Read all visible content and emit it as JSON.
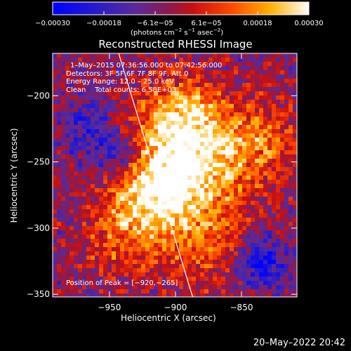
{
  "chart_data": {
    "type": "heatmap",
    "title": "Reconstructed RHESSI Image",
    "xlabel": "Heliocentric X (arcsec)",
    "ylabel": "Heliocentric Y (arcsec)",
    "xlim": [
      -993,
      -808
    ],
    "ylim": [
      -352,
      -168
    ],
    "xticks": [
      -950,
      -900,
      -850
    ],
    "yticks": [
      -200,
      -250,
      -300,
      -350
    ],
    "xtick_labels": [
      "−950",
      "−900",
      "−850"
    ],
    "ytick_labels": [
      "−200",
      "−250",
      "−300",
      "−350"
    ],
    "colorbar": {
      "range": [
        -0.0003,
        0.0003
      ],
      "ticks": [
        "−0.00030",
        "−0.00018",
        "−6.1e−05",
        "6.1e−05",
        "0.00018",
        "0.00030"
      ],
      "units_main": "(photons cm",
      "units_sup1": "−2",
      "units_mid1": " s",
      "units_sup2": "−1",
      "units_mid2": " asec",
      "units_sup3": "−2",
      "units_end": ")"
    },
    "limb_line": {
      "from": [
        -943,
        -168
      ],
      "to": [
        -887,
        -352
      ]
    },
    "peak": [
      -920,
      -265
    ],
    "info_lines": [
      "1–May–2015 07:36:56.000 to 07:42:56.000",
      "Detectors: 3F 5F 6F 7F 8F 9F, Att 0",
      "Energy Range: 12.0 – 25.0 keV",
      "Clean    Total counts: 6.58E+03"
    ],
    "peak_label": "Position of Peak = [−920,−265]"
  },
  "footer": {
    "date": "20–May–2022 20:42"
  }
}
